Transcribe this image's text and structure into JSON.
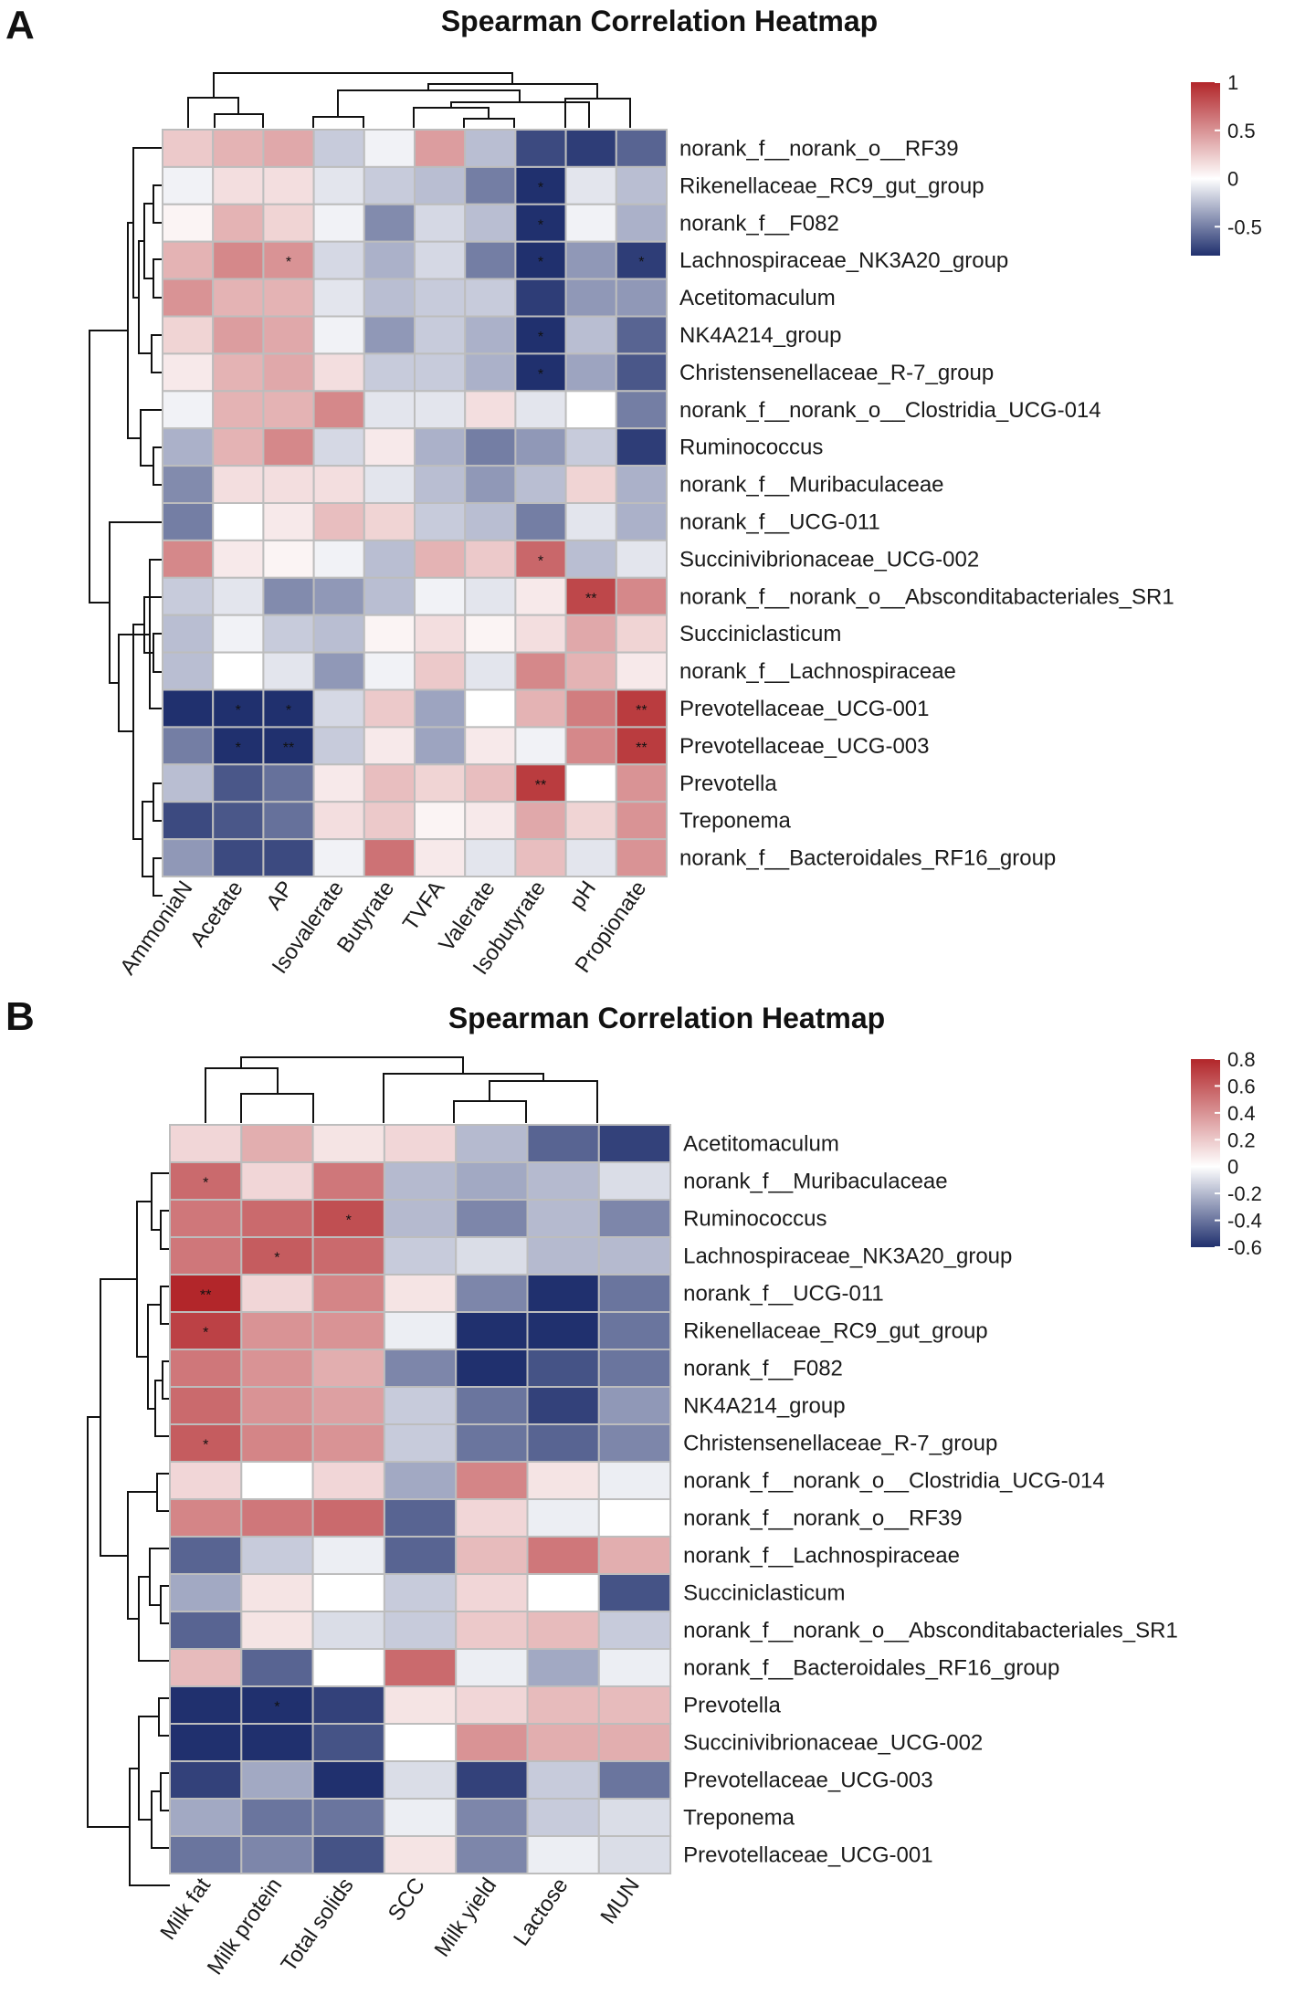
{
  "chart_data": [
    {
      "panel": "A",
      "type": "heatmap",
      "title": "Spearman Correlation Heatmap",
      "columns": [
        "AmmoniaN",
        "Acetate",
        "AP",
        "Isovalerate",
        "Butyrate",
        "TVFA",
        "Valerate",
        "Isobutyrate",
        "pH",
        "Propionate"
      ],
      "rows": [
        "norank_f__norank_o__RF39",
        "Rikenellaceae_RC9_gut_group",
        "norank_f__F082",
        "Lachnospiraceae_NK3A20_group",
        "Acetitomaculum",
        "NK4A214_group",
        "Christensenellaceae_R-7_group",
        "norank_f__norank_o__Clostridia_UCG-014",
        "Ruminococcus",
        "norank_f__Muribaculaceae",
        "norank_f__UCG-011",
        "Succinivibrionaceae_UCG-002",
        "norank_f__norank_o__Absconditabacteriales_SR1",
        "Succiniclasticum",
        "norank_f__Lachnospiraceae",
        "Prevotellaceae_UCG-001",
        "Prevotellaceae_UCG-003",
        "Prevotella",
        "Treponema",
        "norank_f__Bacteroidales_RF16_group"
      ],
      "values": [
        [
          0.25,
          0.35,
          0.4,
          -0.2,
          -0.05,
          0.45,
          -0.25,
          -0.7,
          -0.75,
          -0.6
        ],
        [
          -0.05,
          0.15,
          0.15,
          -0.1,
          -0.2,
          -0.25,
          -0.5,
          -0.85,
          -0.1,
          -0.25
        ],
        [
          0.05,
          0.35,
          0.2,
          -0.05,
          -0.45,
          -0.15,
          -0.25,
          -0.8,
          -0.05,
          -0.3
        ],
        [
          0.35,
          0.55,
          0.5,
          -0.15,
          -0.3,
          -0.15,
          -0.5,
          -0.8,
          -0.4,
          -0.75
        ],
        [
          0.5,
          0.35,
          0.35,
          -0.1,
          -0.25,
          -0.2,
          -0.2,
          -0.75,
          -0.4,
          -0.4
        ],
        [
          0.2,
          0.45,
          0.4,
          -0.05,
          -0.4,
          -0.2,
          -0.3,
          -0.9,
          -0.25,
          -0.6
        ],
        [
          0.1,
          0.35,
          0.4,
          0.15,
          -0.2,
          -0.2,
          -0.3,
          -0.8,
          -0.35,
          -0.65
        ],
        [
          -0.05,
          0.35,
          0.35,
          0.55,
          -0.1,
          -0.1,
          0.15,
          -0.1,
          0.0,
          -0.5
        ],
        [
          -0.3,
          0.35,
          0.55,
          -0.15,
          0.1,
          -0.3,
          -0.5,
          -0.4,
          -0.2,
          -0.75
        ],
        [
          -0.45,
          0.15,
          0.15,
          0.15,
          -0.1,
          -0.25,
          -0.4,
          -0.25,
          0.2,
          -0.3
        ],
        [
          -0.5,
          0.0,
          0.1,
          0.3,
          0.2,
          -0.2,
          -0.25,
          -0.5,
          -0.1,
          -0.3
        ],
        [
          0.55,
          0.1,
          0.05,
          -0.05,
          -0.25,
          0.35,
          0.25,
          0.7,
          -0.25,
          -0.1
        ],
        [
          -0.2,
          -0.1,
          -0.45,
          -0.4,
          -0.25,
          -0.05,
          -0.1,
          0.1,
          0.85,
          0.55
        ],
        [
          -0.25,
          -0.05,
          -0.2,
          -0.25,
          0.05,
          0.15,
          0.05,
          0.15,
          0.4,
          0.2
        ],
        [
          -0.25,
          0.0,
          -0.1,
          -0.4,
          -0.05,
          0.25,
          -0.1,
          0.55,
          0.35,
          0.1
        ],
        [
          -0.85,
          -0.85,
          -0.9,
          -0.15,
          0.25,
          -0.35,
          0.0,
          0.35,
          0.6,
          0.9
        ],
        [
          -0.5,
          -0.9,
          -0.95,
          -0.2,
          0.1,
          -0.35,
          0.1,
          -0.05,
          0.55,
          0.9
        ],
        [
          -0.25,
          -0.65,
          -0.55,
          0.1,
          0.3,
          0.2,
          0.3,
          0.9,
          0.0,
          0.5
        ],
        [
          -0.7,
          -0.65,
          -0.55,
          0.15,
          0.25,
          0.05,
          0.1,
          0.4,
          0.2,
          0.5
        ],
        [
          -0.4,
          -0.7,
          -0.7,
          -0.05,
          0.65,
          0.1,
          -0.1,
          0.3,
          -0.1,
          0.5
        ]
      ],
      "significance": [
        {
          "row": 1,
          "col": 7,
          "mark": "*"
        },
        {
          "row": 2,
          "col": 7,
          "mark": "*"
        },
        {
          "row": 3,
          "col": 2,
          "mark": "*"
        },
        {
          "row": 3,
          "col": 7,
          "mark": "*"
        },
        {
          "row": 3,
          "col": 9,
          "mark": "*"
        },
        {
          "row": 5,
          "col": 7,
          "mark": "*"
        },
        {
          "row": 6,
          "col": 7,
          "mark": "*"
        },
        {
          "row": 11,
          "col": 7,
          "mark": "*"
        },
        {
          "row": 12,
          "col": 8,
          "mark": "**"
        },
        {
          "row": 15,
          "col": 1,
          "mark": "*"
        },
        {
          "row": 15,
          "col": 2,
          "mark": "*"
        },
        {
          "row": 15,
          "col": 9,
          "mark": "**"
        },
        {
          "row": 16,
          "col": 1,
          "mark": "*"
        },
        {
          "row": 16,
          "col": 2,
          "mark": "**"
        },
        {
          "row": 16,
          "col": 9,
          "mark": "**"
        },
        {
          "row": 17,
          "col": 7,
          "mark": "**"
        }
      ],
      "colorbar": {
        "min": -0.8,
        "max": 1.0,
        "ticks": [
          1,
          0.5,
          0,
          -0.5
        ],
        "tick_labels": [
          "1",
          "0.5",
          "0",
          "-0.5"
        ]
      },
      "colors": {
        "low": "#20306e",
        "mid": "#ffffff",
        "high": "#b2262a"
      }
    },
    {
      "panel": "B",
      "type": "heatmap",
      "title": "Spearman Correlation Heatmap",
      "columns": [
        "Milk fat",
        "Milk protein",
        "Total solids",
        "SCC",
        "Milk yield",
        "Lactose",
        "MUN"
      ],
      "rows": [
        "Acetitomaculum",
        "norank_f__Muribaculaceae",
        "Ruminococcus",
        "Lachnospiraceae_NK3A20_group",
        "norank_f__UCG-011",
        "Rikenellaceae_RC9_gut_group",
        "norank_f__F082",
        "NK4A214_group",
        "Christensenellaceae_R-7_group",
        "norank_f__norank_o__Clostridia_UCG-014",
        "norank_f__norank_o__RF39",
        "norank_f__Lachnospiraceae",
        "Succiniclasticum",
        "norank_f__norank_o__Absconditabacteriales_SR1",
        "norank_f__Bacteroidales_RF16_group",
        "Prevotella",
        "Succinivibrionaceae_UCG-002",
        "Prevotellaceae_UCG-003",
        "Treponema",
        "Prevotellaceae_UCG-001"
      ],
      "values": [
        [
          0.15,
          0.3,
          0.1,
          0.15,
          -0.2,
          -0.45,
          -0.55
        ],
        [
          0.55,
          0.15,
          0.5,
          -0.2,
          -0.25,
          -0.2,
          -0.1
        ],
        [
          0.5,
          0.55,
          0.65,
          -0.2,
          -0.35,
          -0.2,
          -0.35
        ],
        [
          0.5,
          0.6,
          0.55,
          -0.15,
          -0.1,
          -0.2,
          -0.2
        ],
        [
          0.8,
          0.15,
          0.45,
          0.1,
          -0.35,
          -0.6,
          -0.4
        ],
        [
          0.7,
          0.4,
          0.4,
          -0.05,
          -0.65,
          -0.65,
          -0.4
        ],
        [
          0.5,
          0.4,
          0.3,
          -0.35,
          -0.6,
          -0.5,
          -0.4
        ],
        [
          0.55,
          0.4,
          0.35,
          -0.15,
          -0.4,
          -0.55,
          -0.3
        ],
        [
          0.6,
          0.45,
          0.4,
          -0.15,
          -0.4,
          -0.45,
          -0.35
        ],
        [
          0.15,
          0.0,
          0.15,
          -0.25,
          0.45,
          0.1,
          -0.05
        ],
        [
          0.45,
          0.5,
          0.55,
          -0.45,
          0.15,
          -0.05,
          0.0
        ],
        [
          -0.45,
          -0.15,
          -0.05,
          -0.45,
          0.25,
          0.5,
          0.3
        ],
        [
          -0.25,
          0.1,
          0.0,
          -0.15,
          0.15,
          0.0,
          -0.5
        ],
        [
          -0.45,
          0.1,
          -0.1,
          -0.15,
          0.2,
          0.25,
          -0.15
        ],
        [
          0.25,
          -0.45,
          0.0,
          0.55,
          -0.05,
          -0.25,
          -0.05
        ],
        [
          -0.6,
          -0.65,
          -0.55,
          0.1,
          0.15,
          0.25,
          0.25
        ],
        [
          -0.65,
          -0.65,
          -0.5,
          0.0,
          0.4,
          0.3,
          0.3
        ],
        [
          -0.55,
          -0.25,
          -0.65,
          -0.1,
          -0.55,
          -0.15,
          -0.4
        ],
        [
          -0.25,
          -0.4,
          -0.4,
          -0.05,
          -0.35,
          -0.15,
          -0.1
        ],
        [
          -0.4,
          -0.35,
          -0.5,
          0.1,
          -0.35,
          -0.05,
          -0.1
        ]
      ],
      "significance": [
        {
          "row": 1,
          "col": 0,
          "mark": "*"
        },
        {
          "row": 2,
          "col": 2,
          "mark": "*"
        },
        {
          "row": 3,
          "col": 1,
          "mark": "*"
        },
        {
          "row": 4,
          "col": 0,
          "mark": "**"
        },
        {
          "row": 5,
          "col": 0,
          "mark": "*"
        },
        {
          "row": 8,
          "col": 0,
          "mark": "*"
        },
        {
          "row": 15,
          "col": 1,
          "mark": "*"
        }
      ],
      "colorbar": {
        "min": -0.6,
        "max": 0.8,
        "ticks": [
          0.8,
          0.6,
          0.4,
          0.2,
          0,
          -0.2,
          -0.4,
          -0.6
        ],
        "tick_labels": [
          "0.8",
          "0.6",
          "0.4",
          "0.2",
          "0",
          "-0.2",
          "-0.4",
          "-0.6"
        ]
      },
      "colors": {
        "low": "#20306e",
        "mid": "#ffffff",
        "high": "#b2262a"
      }
    }
  ]
}
